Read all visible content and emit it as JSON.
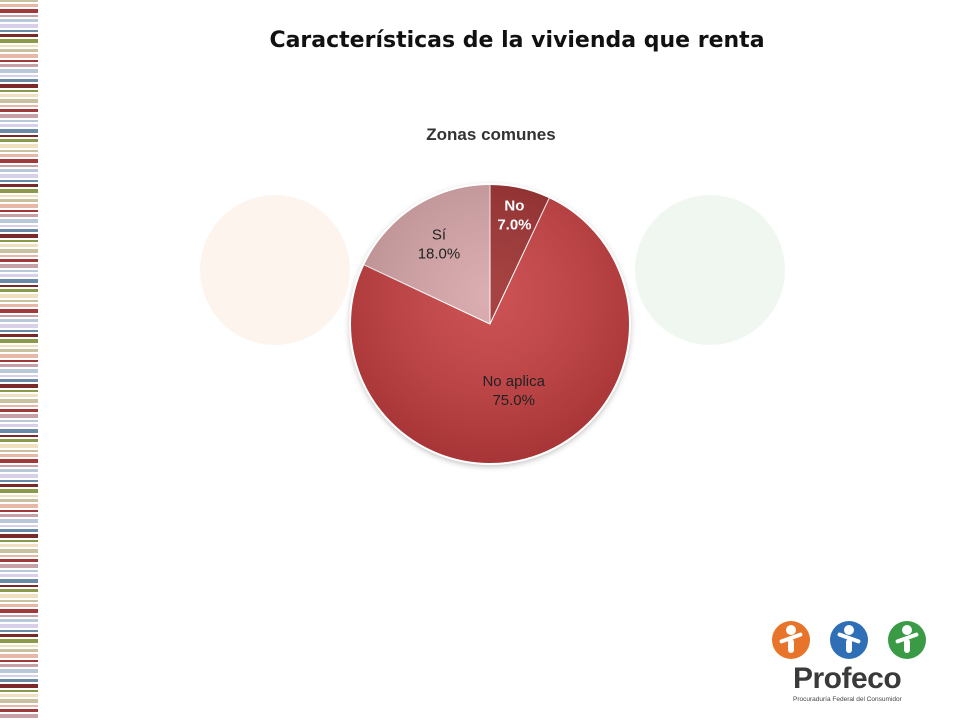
{
  "slide": {
    "title": "Características de la vivienda que renta"
  },
  "chart_data": {
    "type": "pie",
    "title": "Zonas comunes",
    "slices": [
      {
        "label": "No",
        "value": 7.0,
        "value_label": "7.0%",
        "color": "#9b2a2c"
      },
      {
        "label": "No aplica",
        "value": 75.0,
        "value_label": "75.0%",
        "color": "#c63a3c"
      },
      {
        "label": "Sí",
        "value": 18.0,
        "value_label": "18.0%",
        "color": "#d6a3a6"
      }
    ],
    "start_angle_deg": 0,
    "direction": "clockwise",
    "legend": "none",
    "data_labels": "inside"
  },
  "logo": {
    "wordmark": "Profeco",
    "tagline": "Procuraduría Federal del Consumidor",
    "colors": [
      "#e8732a",
      "#2e6fb5",
      "#3a9a46"
    ]
  },
  "decor": {
    "stripe_colors": [
      "#c9c0a0",
      "#7a2a2a",
      "#b8c8d8",
      "#e7b8a8",
      "#8a9a4a",
      "#d8d0e8",
      "#a03a3a",
      "#f0e0c0",
      "#6a8aa8",
      "#c8a0a8"
    ]
  }
}
